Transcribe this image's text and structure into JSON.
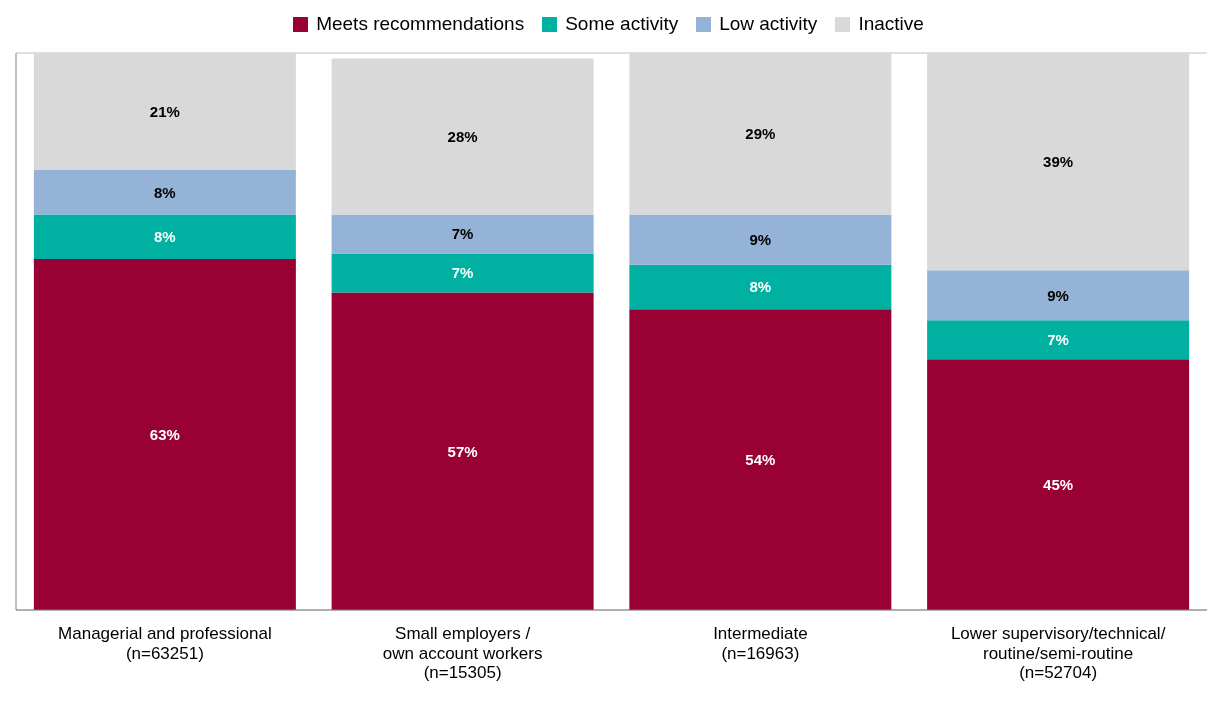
{
  "chart_data": {
    "type": "bar",
    "stacked": true,
    "categories": [
      "Managerial and professional\n(n=63251)",
      "Small employers /\nown account workers\n(n=15305)",
      "Intermediate\n(n=16963)",
      "Lower supervisory/technical/\nroutine/semi-routine\n(n=52704)"
    ],
    "series": [
      {
        "name": "Meets recommendations",
        "color": "#990033",
        "values": [
          63,
          57,
          54,
          45
        ],
        "value_labels": [
          "63%",
          "57%",
          "54%",
          "45%"
        ]
      },
      {
        "name": "Some activity",
        "color": "#00b0a0",
        "values": [
          8,
          7,
          8,
          7
        ],
        "value_labels": [
          "8%",
          "7%",
          "8%",
          "7%"
        ]
      },
      {
        "name": "Low activity",
        "color": "#95b3d7",
        "values": [
          8,
          7,
          9,
          9
        ],
        "value_labels": [
          "8%",
          "7%",
          "9%",
          "9%"
        ]
      },
      {
        "name": "Inactive",
        "color": "#d9d9d9",
        "values": [
          21,
          28,
          29,
          39
        ],
        "value_labels": [
          "21%",
          "28%",
          "29%",
          "39%"
        ]
      }
    ],
    "tick_labels": "x",
    "grid": "y",
    "legend": "top"
  }
}
